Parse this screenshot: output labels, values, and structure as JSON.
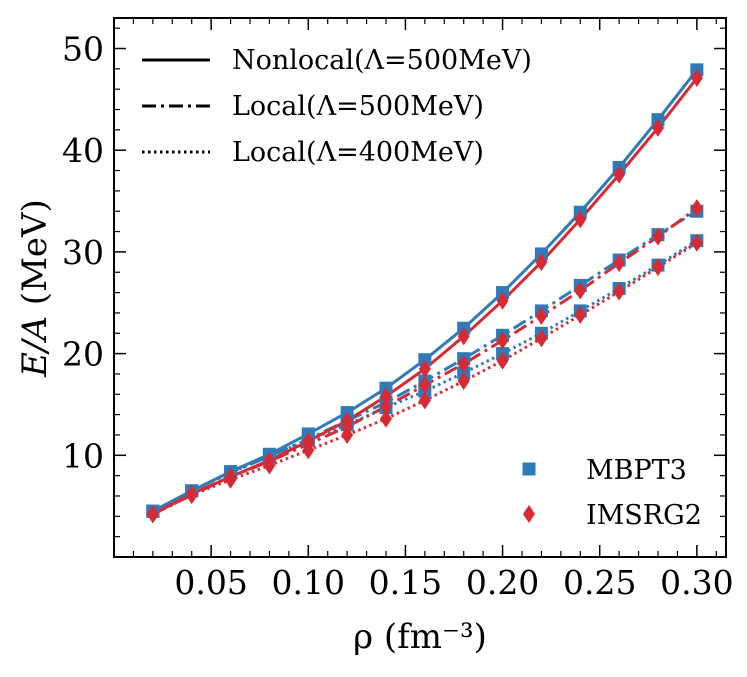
{
  "chart_data": {
    "type": "line",
    "xlabel": "ρ (fm⁻³)",
    "ylabel_italic": "E/A",
    "ylabel_rest": " (MeV)",
    "xlim": [
      0.0,
      0.315
    ],
    "ylim": [
      0,
      53
    ],
    "x_ticks": [
      0.05,
      0.1,
      0.15,
      0.2,
      0.25,
      0.3
    ],
    "x_tick_labels": [
      "0.05",
      "0.10",
      "0.15",
      "0.20",
      "0.25",
      "0.30"
    ],
    "y_ticks": [
      10,
      20,
      30,
      40,
      50
    ],
    "y_tick_labels": [
      "10",
      "20",
      "30",
      "40",
      "50"
    ],
    "x": [
      0.02,
      0.04,
      0.06,
      0.08,
      0.1,
      0.12,
      0.14,
      0.16,
      0.18,
      0.2,
      0.22,
      0.24,
      0.26,
      0.28,
      0.3
    ],
    "method_colors": {
      "MBPT3": "#2e7bb8",
      "IMSRG2": "#d62a35"
    },
    "series": [
      {
        "name": "Nonlocal(Λ=500MeV)",
        "method": "MBPT3",
        "style": "solid",
        "values": [
          4.5,
          6.5,
          8.4,
          10.1,
          12.1,
          14.2,
          16.6,
          19.4,
          22.5,
          26.0,
          29.8,
          33.9,
          38.3,
          43.0,
          47.9
        ]
      },
      {
        "name": "Nonlocal(Λ=500MeV)",
        "method": "IMSRG2",
        "style": "solid",
        "values": [
          4.2,
          6.2,
          7.9,
          9.5,
          11.4,
          13.4,
          15.8,
          18.5,
          21.7,
          25.2,
          29.0,
          33.2,
          37.6,
          42.2,
          47.1
        ]
      },
      {
        "name": "Local(Λ=500MeV)",
        "method": "MBPT3",
        "style": "dashdot",
        "values": [
          4.5,
          6.5,
          8.3,
          9.9,
          11.6,
          13.4,
          15.2,
          17.3,
          19.5,
          21.8,
          24.2,
          26.7,
          29.2,
          31.7,
          34.0
        ]
      },
      {
        "name": "Local(Λ=500MeV)",
        "method": "IMSRG2",
        "style": "dashdot",
        "values": [
          4.2,
          6.1,
          7.9,
          9.4,
          11.1,
          12.8,
          14.8,
          16.9,
          19.0,
          21.3,
          23.7,
          26.2,
          28.9,
          31.5,
          34.3
        ]
      },
      {
        "name": "Local(Λ=400MeV)",
        "method": "MBPT3",
        "style": "dotted",
        "values": [
          4.5,
          6.5,
          8.3,
          9.9,
          11.5,
          13.0,
          14.7,
          16.3,
          18.1,
          20.0,
          22.0,
          24.2,
          26.4,
          28.7,
          31.1
        ]
      },
      {
        "name": "Local(Λ=400MeV)",
        "method": "IMSRG2",
        "style": "dotted",
        "values": [
          4.2,
          6.1,
          7.6,
          9.0,
          10.5,
          12.0,
          13.6,
          15.4,
          17.3,
          19.3,
          21.5,
          23.8,
          26.1,
          28.5,
          30.9
        ]
      }
    ],
    "legend_lines": [
      {
        "label": "Nonlocal(Λ=500MeV)",
        "style": "solid"
      },
      {
        "label": "Local(Λ=500MeV)",
        "style": "dashdot"
      },
      {
        "label": "Local(Λ=400MeV)",
        "style": "dotted"
      }
    ],
    "legend_lines_placement": "top-left",
    "legend_markers": [
      {
        "label": "MBPT3",
        "marker": "square",
        "color": "#2e7bb8"
      },
      {
        "label": "IMSRG2",
        "marker": "diamond",
        "color": "#d62a35"
      }
    ],
    "legend_markers_placement": "bottom-right"
  }
}
